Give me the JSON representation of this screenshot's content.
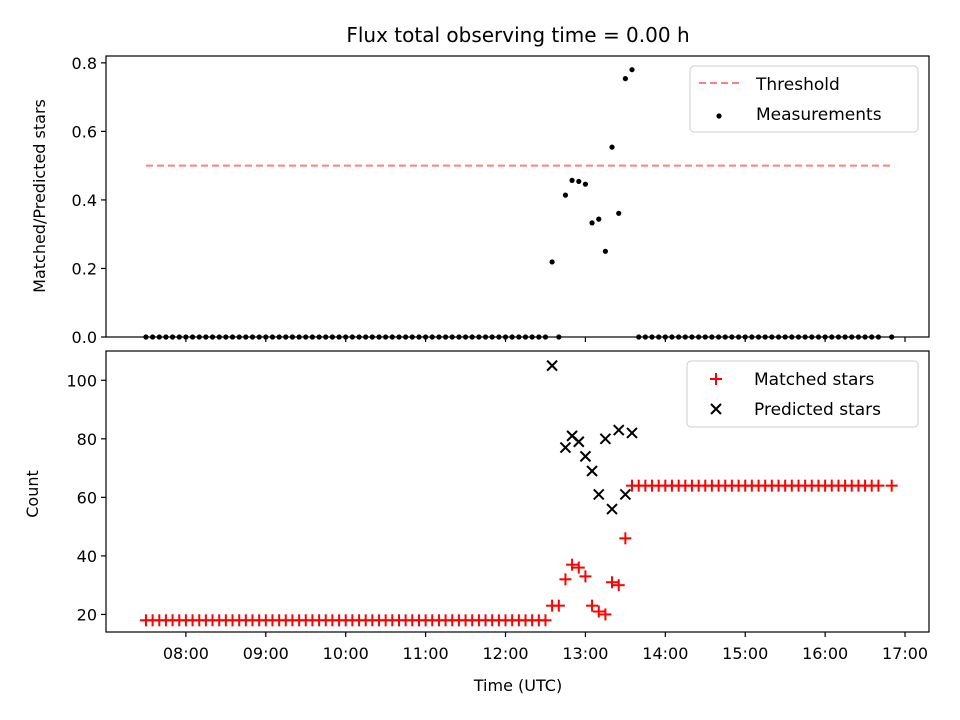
{
  "chart_data": [
    {
      "type": "scatter",
      "title": "Flux total observing time = 0.00 h",
      "xlabel": "",
      "ylabel": "Matched/Predicted stars",
      "ylim": [
        0,
        0.82
      ],
      "yticks": [
        "0.0",
        "0.2",
        "0.4",
        "0.6",
        "0.8"
      ],
      "ytick_values": [
        0,
        0.2,
        0.4,
        0.6,
        0.8
      ],
      "xlim_hours": [
        7.0,
        17.3
      ],
      "legend_position": "upper-right",
      "threshold": {
        "name": "Threshold",
        "value": 0.5,
        "x_range_hours": [
          7.5,
          16.83
        ],
        "color": "#ff7f7f",
        "style": "dashed"
      },
      "series": [
        {
          "name": "Measurements",
          "marker": "dot",
          "color": "#000000",
          "x_hours": [
            7.5,
            7.583,
            7.667,
            7.75,
            7.833,
            7.917,
            8.0,
            8.083,
            8.167,
            8.25,
            8.333,
            8.417,
            8.5,
            8.583,
            8.667,
            8.75,
            8.833,
            8.917,
            9.0,
            9.083,
            9.167,
            9.25,
            9.333,
            9.417,
            9.5,
            9.583,
            9.667,
            9.75,
            9.833,
            9.917,
            10.0,
            10.083,
            10.167,
            10.25,
            10.333,
            10.417,
            10.5,
            10.583,
            10.667,
            10.75,
            10.833,
            10.917,
            11.0,
            11.083,
            11.167,
            11.25,
            11.333,
            11.417,
            11.5,
            11.583,
            11.667,
            11.75,
            11.833,
            11.917,
            12.0,
            12.083,
            12.167,
            12.25,
            12.333,
            12.417,
            12.5,
            12.583,
            12.667,
            12.75,
            12.833,
            12.917,
            13.0,
            13.083,
            13.167,
            13.25,
            13.333,
            13.417,
            13.5,
            13.583,
            13.667,
            13.75,
            13.833,
            13.917,
            14.0,
            14.083,
            14.167,
            14.25,
            14.333,
            14.417,
            14.5,
            14.583,
            14.667,
            14.75,
            14.833,
            14.917,
            15.0,
            15.083,
            15.167,
            15.25,
            15.333,
            15.417,
            15.5,
            15.583,
            15.667,
            15.75,
            15.833,
            15.917,
            16.0,
            16.083,
            16.167,
            16.25,
            16.333,
            16.417,
            16.5,
            16.583,
            16.667,
            16.833
          ],
          "y": [
            0,
            0,
            0,
            0,
            0,
            0,
            0,
            0,
            0,
            0,
            0,
            0,
            0,
            0,
            0,
            0,
            0,
            0,
            0,
            0,
            0,
            0,
            0,
            0,
            0,
            0,
            0,
            0,
            0,
            0,
            0,
            0,
            0,
            0,
            0,
            0,
            0,
            0,
            0,
            0,
            0,
            0,
            0,
            0,
            0,
            0,
            0,
            0,
            0,
            0,
            0,
            0,
            0,
            0,
            0,
            0,
            0,
            0,
            0,
            0,
            0,
            0.219,
            0,
            0.414,
            0.457,
            0.454,
            0.446,
            0.333,
            0.344,
            0.25,
            0.554,
            0.361,
            0.754,
            0.78,
            0,
            0,
            0,
            0,
            0,
            0,
            0,
            0,
            0,
            0,
            0,
            0,
            0,
            0,
            0,
            0,
            0,
            0,
            0,
            0,
            0,
            0,
            0,
            0,
            0,
            0,
            0,
            0,
            0,
            0,
            0,
            0,
            0,
            0,
            0,
            0,
            0,
            0
          ]
        }
      ]
    },
    {
      "type": "scatter",
      "title": "",
      "xlabel": "Time (UTC)",
      "ylabel": "Count",
      "ylim": [
        14,
        110
      ],
      "yticks": [
        "20",
        "40",
        "60",
        "80",
        "100"
      ],
      "ytick_values": [
        20,
        40,
        60,
        80,
        100
      ],
      "xlim_hours": [
        7.0,
        17.3
      ],
      "xticks": [
        "08:00",
        "09:00",
        "10:00",
        "11:00",
        "12:00",
        "13:00",
        "14:00",
        "15:00",
        "16:00",
        "17:00"
      ],
      "xtick_values": [
        8,
        9,
        10,
        11,
        12,
        13,
        14,
        15,
        16,
        17
      ],
      "legend_position": "upper-right",
      "series": [
        {
          "name": "Matched stars",
          "marker": "plus",
          "color": "#ff0000",
          "x_hours": [
            7.5,
            7.583,
            7.667,
            7.75,
            7.833,
            7.917,
            8.0,
            8.083,
            8.167,
            8.25,
            8.333,
            8.417,
            8.5,
            8.583,
            8.667,
            8.75,
            8.833,
            8.917,
            9.0,
            9.083,
            9.167,
            9.25,
            9.333,
            9.417,
            9.5,
            9.583,
            9.667,
            9.75,
            9.833,
            9.917,
            10.0,
            10.083,
            10.167,
            10.25,
            10.333,
            10.417,
            10.5,
            10.583,
            10.667,
            10.75,
            10.833,
            10.917,
            11.0,
            11.083,
            11.167,
            11.25,
            11.333,
            11.417,
            11.5,
            11.583,
            11.667,
            11.75,
            11.833,
            11.917,
            12.0,
            12.083,
            12.167,
            12.25,
            12.333,
            12.417,
            12.5,
            12.583,
            12.667,
            12.75,
            12.833,
            12.917,
            13.0,
            13.083,
            13.167,
            13.25,
            13.333,
            13.417,
            13.5,
            13.583,
            13.667,
            13.75,
            13.833,
            13.917,
            14.0,
            14.083,
            14.167,
            14.25,
            14.333,
            14.417,
            14.5,
            14.583,
            14.667,
            14.75,
            14.833,
            14.917,
            15.0,
            15.083,
            15.167,
            15.25,
            15.333,
            15.417,
            15.5,
            15.583,
            15.667,
            15.75,
            15.833,
            15.917,
            16.0,
            16.083,
            16.167,
            16.25,
            16.333,
            16.417,
            16.5,
            16.583,
            16.667,
            16.833
          ],
          "y": [
            18,
            18,
            18,
            18,
            18,
            18,
            18,
            18,
            18,
            18,
            18,
            18,
            18,
            18,
            18,
            18,
            18,
            18,
            18,
            18,
            18,
            18,
            18,
            18,
            18,
            18,
            18,
            18,
            18,
            18,
            18,
            18,
            18,
            18,
            18,
            18,
            18,
            18,
            18,
            18,
            18,
            18,
            18,
            18,
            18,
            18,
            18,
            18,
            18,
            18,
            18,
            18,
            18,
            18,
            18,
            18,
            18,
            18,
            18,
            18,
            18,
            23,
            23,
            32,
            37,
            36,
            33,
            23,
            21,
            20,
            31,
            30,
            46,
            64,
            64,
            64,
            64,
            64,
            64,
            64,
            64,
            64,
            64,
            64,
            64,
            64,
            64,
            64,
            64,
            64,
            64,
            64,
            64,
            64,
            64,
            64,
            64,
            64,
            64,
            64,
            64,
            64,
            64,
            64,
            64,
            64,
            64,
            64,
            64,
            64,
            64,
            64
          ]
        },
        {
          "name": "Predicted stars",
          "marker": "x",
          "color": "#000000",
          "x_hours": [
            12.583,
            12.75,
            12.833,
            12.917,
            13.0,
            13.083,
            13.167,
            13.25,
            13.333,
            13.417,
            13.5,
            13.583
          ],
          "y": [
            105,
            77,
            81,
            79,
            74,
            69,
            61,
            80,
            56,
            83,
            61,
            82
          ]
        }
      ]
    }
  ]
}
